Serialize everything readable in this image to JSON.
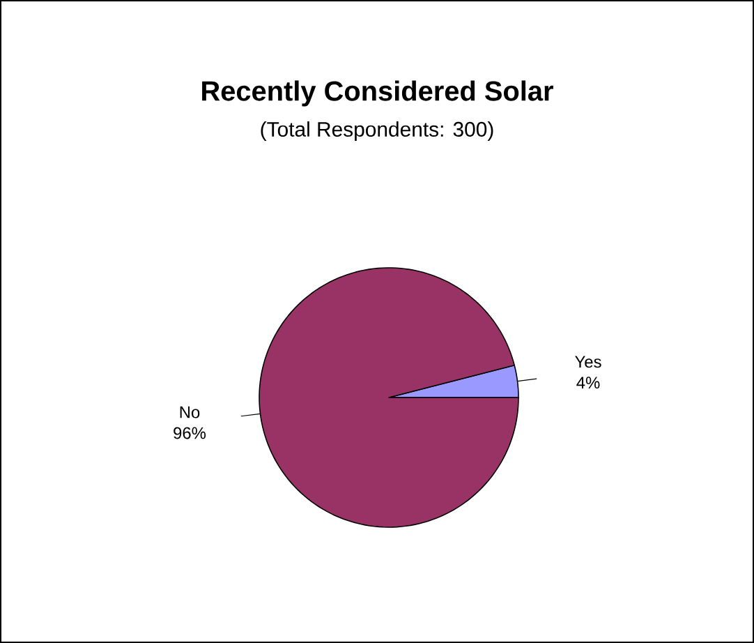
{
  "chart_data": {
    "type": "pie",
    "title": "Recently Considered Solar",
    "subtitle": "(Total Respondents: 300)",
    "categories": [
      "No",
      "Yes"
    ],
    "values": [
      96,
      4
    ],
    "value_labels": [
      "96%",
      "4%"
    ],
    "colors": [
      "#993366",
      "#9999ff"
    ]
  }
}
